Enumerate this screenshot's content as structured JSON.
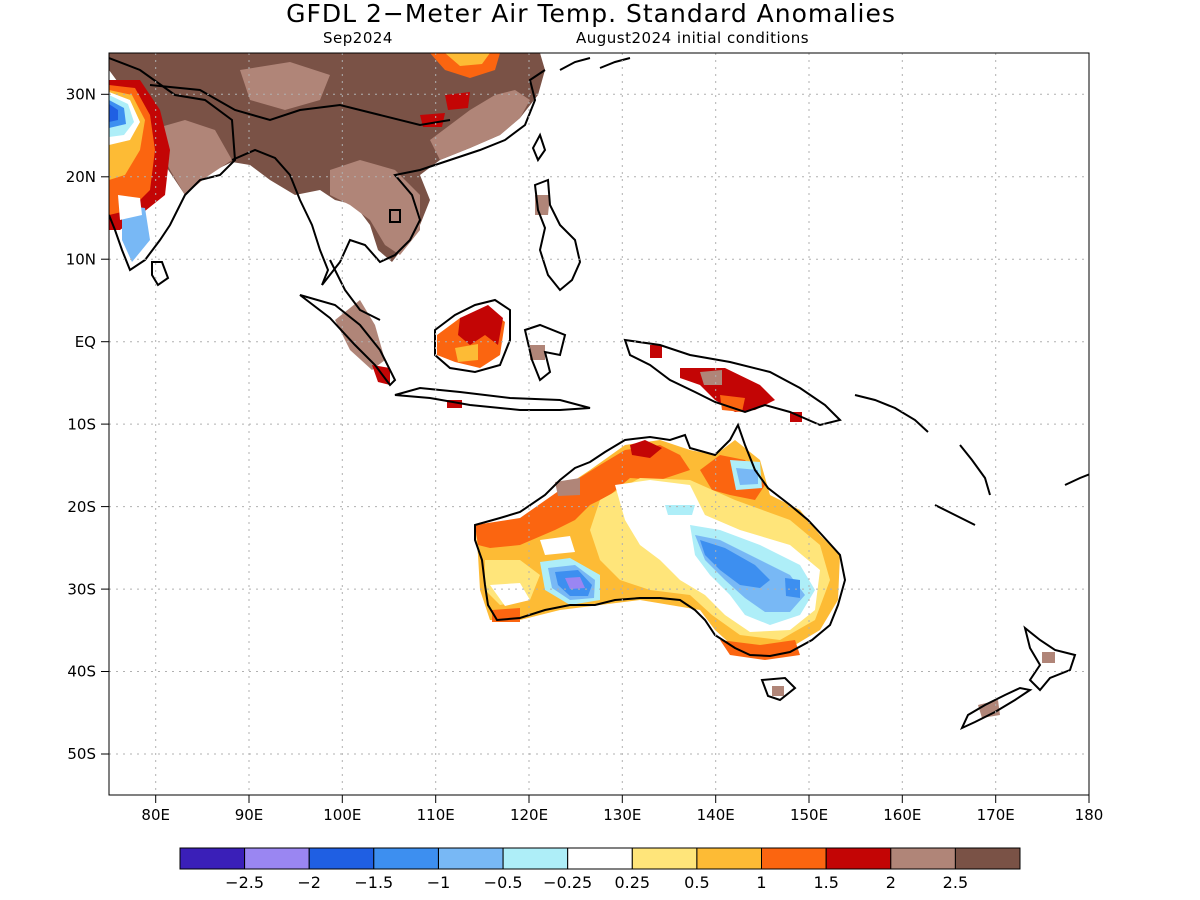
{
  "title": "GFDL 2−Meter Air Temp. Standard Anomalies",
  "subtitle_left": "Sep2024",
  "subtitle_right": "August2024 initial conditions",
  "map": {
    "lon_range": [
      75,
      180
    ],
    "lat_range": [
      -55,
      35
    ],
    "x_ticks": [
      "80E",
      "90E",
      "100E",
      "110E",
      "120E",
      "130E",
      "140E",
      "150E",
      "160E",
      "170E",
      "180"
    ],
    "y_ticks": [
      "30N",
      "20N",
      "10N",
      "EQ",
      "10S",
      "20S",
      "30S",
      "40S",
      "50S"
    ],
    "grid": "dotted",
    "land_color": "#000000"
  },
  "colorbar": {
    "colors": [
      "#3a1fb8",
      "#9a86f2",
      "#1f5fe3",
      "#3d8ff0",
      "#78b8f5",
      "#aeeef8",
      "#ffffff",
      "#ffe57a",
      "#fdbb35",
      "#fb6510",
      "#c30505",
      "#b08578",
      "#7a5246"
    ],
    "labels": [
      "−2.5",
      "−2",
      "−1.5",
      "−1",
      "−0.5",
      "−0.25",
      "0.25",
      "0.5",
      "1",
      "1.5",
      "2",
      "2.5"
    ]
  }
}
